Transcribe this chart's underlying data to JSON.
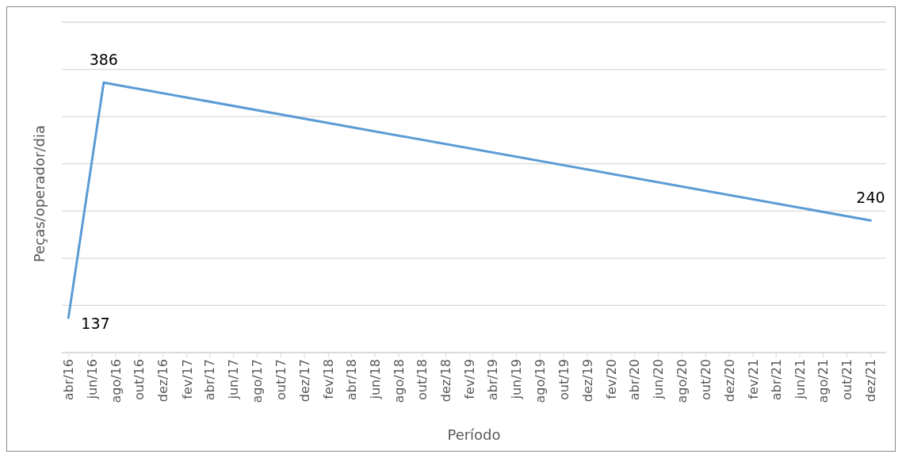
{
  "chart_data": {
    "type": "line",
    "xlabel": "Período",
    "ylabel": "Peças/operador/dia",
    "x": [
      "2016-04",
      "2016-07",
      "2021-12"
    ],
    "series": [
      {
        "color": "#5b9bd5",
        "values": [
          137,
          386,
          240
        ]
      }
    ],
    "data_labels": true,
    "grid": "y",
    "marker": "none",
    "line_style": "solid",
    "tick_labels": "x",
    "ylim": [
      100,
      450
    ],
    "yticks": [
      {
        "value": 100,
        "label": null
      },
      {
        "value": 150,
        "label": null
      },
      {
        "value": 200,
        "label": null
      },
      {
        "value": 250,
        "label": null
      },
      {
        "value": 300,
        "label": null
      },
      {
        "value": 350,
        "label": null
      },
      {
        "value": 400,
        "label": null
      },
      {
        "value": 450,
        "label": null
      }
    ],
    "xlim": [
      "2016-03-15",
      "2022-01-10"
    ],
    "xticks": [
      {
        "value": "2016-04",
        "label": "abr/16"
      },
      {
        "value": "2016-06",
        "label": "jun/16"
      },
      {
        "value": "2016-08",
        "label": "ago/16"
      },
      {
        "value": "2016-10",
        "label": "out/16"
      },
      {
        "value": "2016-12",
        "label": "dez/16"
      },
      {
        "value": "2017-02",
        "label": "fev/17"
      },
      {
        "value": "2017-04",
        "label": "abr/17"
      },
      {
        "value": "2017-06",
        "label": "jun/17"
      },
      {
        "value": "2017-08",
        "label": "ago/17"
      },
      {
        "value": "2017-10",
        "label": "out/17"
      },
      {
        "value": "2017-12",
        "label": "dez/17"
      },
      {
        "value": "2018-02",
        "label": "fev/18"
      },
      {
        "value": "2018-04",
        "label": "abr/18"
      },
      {
        "value": "2018-06",
        "label": "jun/18"
      },
      {
        "value": "2018-08",
        "label": "ago/18"
      },
      {
        "value": "2018-10",
        "label": "out/18"
      },
      {
        "value": "2018-12",
        "label": "dez/18"
      },
      {
        "value": "2019-02",
        "label": "fev/19"
      },
      {
        "value": "2019-04",
        "label": "abr/19"
      },
      {
        "value": "2019-06",
        "label": "jun/19"
      },
      {
        "value": "2019-08",
        "label": "ago/19"
      },
      {
        "value": "2019-10",
        "label": "out/19"
      },
      {
        "value": "2019-12",
        "label": "dez/19"
      },
      {
        "value": "2020-02",
        "label": "fev/20"
      },
      {
        "value": "2020-04",
        "label": "abr/20"
      },
      {
        "value": "2020-06",
        "label": "jun/20"
      },
      {
        "value": "2020-08",
        "label": "ago/20"
      },
      {
        "value": "2020-10",
        "label": "out/20"
      },
      {
        "value": "2020-12",
        "label": "dez/20"
      },
      {
        "value": "2021-02",
        "label": "fev/21"
      },
      {
        "value": "2021-04",
        "label": "abr/21"
      },
      {
        "value": "2021-06",
        "label": "jun/21"
      },
      {
        "value": "2021-08",
        "label": "ago/21"
      },
      {
        "value": "2021-10",
        "label": "out/21"
      },
      {
        "value": "2021-12",
        "label": "dez/21"
      }
    ]
  }
}
